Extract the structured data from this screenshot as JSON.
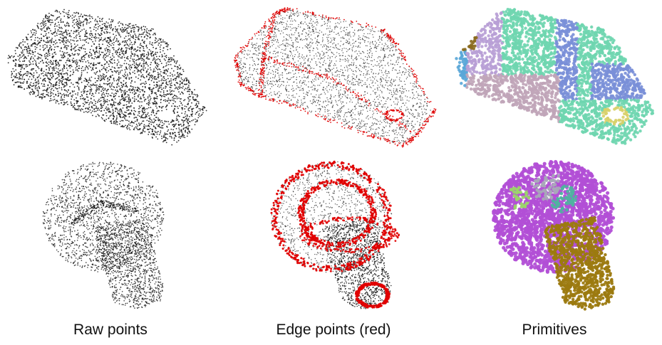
{
  "columns": [
    {
      "key": "raw",
      "caption": "Raw points"
    },
    {
      "key": "edge",
      "caption": "Edge points (red)"
    },
    {
      "key": "prim",
      "caption": "Primitives"
    }
  ],
  "colors": {
    "background": "#ffffff",
    "raw_point": "#1a1a1a",
    "light_point": "#3a3a3a",
    "edge_point": "#e00000",
    "primitive_palette": [
      "#6fd6b0",
      "#7a8fd8",
      "#b8a0d6",
      "#9bd36a",
      "#8a6a1e",
      "#5aa7d8",
      "#c0a5b8",
      "#d8d06a",
      "#a8a8b8",
      "#4fb3a0"
    ],
    "cap_primary": "#b24fd6",
    "shaft_primary": "#9c7a10"
  }
}
